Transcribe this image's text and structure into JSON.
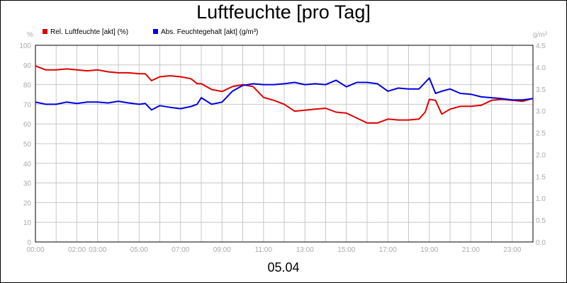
{
  "chart_data": {
    "type": "line",
    "title": "Luftfeuchte [pro Tag]",
    "date_label": "05.04",
    "x_tick_labels": [
      "00:00",
      "02:00",
      "03:00",
      "05:00",
      "07:00",
      "09:00",
      "11:00",
      "13:00",
      "15:00",
      "17:00",
      "19:00",
      "21:00",
      "23:00"
    ],
    "x_tick_hours": [
      0,
      2,
      3,
      5,
      7,
      9,
      11,
      13,
      15,
      17,
      19,
      21,
      23
    ],
    "xlim": [
      0,
      24
    ],
    "y_left": {
      "unit": "%",
      "lim": [
        0,
        100
      ],
      "ticks": [
        "0",
        "10",
        "20",
        "30",
        "40",
        "50",
        "60",
        "70",
        "80",
        "90",
        "100"
      ]
    },
    "y_right": {
      "unit": "g/m³",
      "lim": [
        0,
        4.5
      ],
      "ticks": [
        "0.0",
        "0.5",
        "1.0",
        "1.5",
        "2.0",
        "2.5",
        "3.0",
        "3.5",
        "4.0",
        "4.5"
      ]
    },
    "grid": true,
    "legend_position": "top-left",
    "series": [
      {
        "name": "Rel. Luftfeuchte [akt] (%)",
        "axis": "left",
        "color": "#e00000",
        "x": [
          0,
          0.5,
          1,
          1.5,
          2,
          2.5,
          3,
          3.5,
          4,
          4.5,
          5,
          5.3,
          5.6,
          6,
          6.5,
          7,
          7.5,
          7.8,
          8,
          8.5,
          9,
          9.5,
          10,
          10.5,
          11,
          11.5,
          12,
          12.5,
          13,
          13.5,
          14,
          14.5,
          15,
          15.5,
          16,
          16.5,
          17,
          17.5,
          18,
          18.5,
          18.8,
          19,
          19.3,
          19.6,
          20,
          20.5,
          21,
          21.5,
          22,
          22.5,
          23,
          23.5,
          24
        ],
        "values": [
          89.5,
          87.5,
          87.5,
          88,
          87.5,
          87,
          87.5,
          86.5,
          86,
          86,
          85.5,
          85.5,
          82,
          84,
          84.5,
          84,
          83,
          80.5,
          80.5,
          77.5,
          76.5,
          79,
          80,
          79,
          73.5,
          72,
          70,
          66.5,
          67,
          67.5,
          68,
          66,
          65.5,
          63,
          60.5,
          60.5,
          62.5,
          62,
          62,
          62.5,
          66,
          72.5,
          72,
          65,
          67.5,
          69,
          69,
          69.5,
          72,
          72.5,
          72,
          71.5,
          73
        ]
      },
      {
        "name": "Abs. Feuchtegehalt [akt] (g/m³)",
        "axis": "right",
        "color": "#0000e0",
        "x": [
          0,
          0.5,
          1,
          1.5,
          2,
          2.5,
          3,
          3.5,
          4,
          4.5,
          5,
          5.3,
          5.6,
          6,
          6.5,
          7,
          7.5,
          7.8,
          8,
          8.5,
          9,
          9.5,
          10,
          10.5,
          11,
          11.5,
          12,
          12.5,
          13,
          13.5,
          14,
          14.5,
          15,
          15.5,
          16,
          16.5,
          17,
          17.5,
          18,
          18.5,
          18.8,
          19,
          19.3,
          19.6,
          20,
          20.5,
          21,
          21.5,
          22,
          22.5,
          23,
          23.5,
          24
        ],
        "values": [
          3.2,
          3.15,
          3.15,
          3.2,
          3.17,
          3.2,
          3.2,
          3.18,
          3.22,
          3.18,
          3.15,
          3.17,
          3.02,
          3.12,
          3.08,
          3.05,
          3.1,
          3.15,
          3.3,
          3.15,
          3.2,
          3.45,
          3.58,
          3.62,
          3.6,
          3.6,
          3.62,
          3.65,
          3.6,
          3.62,
          3.6,
          3.7,
          3.55,
          3.65,
          3.65,
          3.62,
          3.45,
          3.52,
          3.5,
          3.5,
          3.65,
          3.75,
          3.4,
          3.45,
          3.5,
          3.4,
          3.38,
          3.32,
          3.3,
          3.28,
          3.25,
          3.25,
          3.28
        ]
      }
    ]
  }
}
